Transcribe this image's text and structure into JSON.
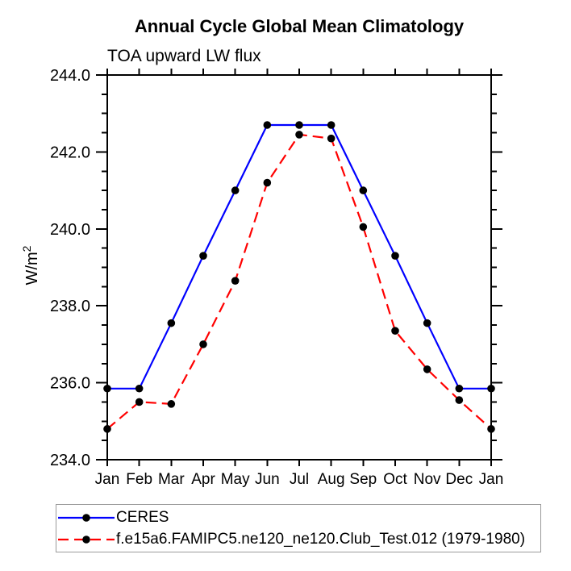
{
  "chart_data": {
    "type": "line",
    "title": "Annual Cycle Global Mean Climatology",
    "subtitle": "TOA upward LW flux",
    "ylabel": "W/m",
    "ylabel_sup": "2",
    "x_categories": [
      "Jan",
      "Feb",
      "Mar",
      "Apr",
      "May",
      "Jun",
      "Jul",
      "Aug",
      "Sep",
      "Oct",
      "Nov",
      "Dec",
      "Jan"
    ],
    "ylim": [
      234.0,
      244.0
    ],
    "ytick_major_interval": 2.0,
    "ytick_minor_interval": 0.5,
    "ytick_labels": [
      "234.0",
      "236.0",
      "238.0",
      "240.0",
      "242.0",
      "244.0"
    ],
    "grid": false,
    "legend_position": "bottom",
    "axis_color": "#000000",
    "marker_color": "#000000",
    "legend_border_color": "#9a9a9a",
    "series": [
      {
        "name": "CERES",
        "color": "#0000ff",
        "style": "solid",
        "marker": "filled-circle",
        "values": [
          235.85,
          235.85,
          237.55,
          239.3,
          241.0,
          242.7,
          242.7,
          242.7,
          241.0,
          239.3,
          237.55,
          235.85,
          235.85
        ]
      },
      {
        "name": "f.e15a6.FAMIPC5.ne120_ne120.Club_Test.012 (1979-1980)",
        "color": "#ff0000",
        "style": "dashed",
        "marker": "filled-circle",
        "values": [
          234.8,
          235.5,
          235.45,
          237.0,
          238.65,
          241.2,
          242.45,
          242.35,
          240.05,
          237.35,
          236.35,
          235.55,
          234.8
        ]
      }
    ]
  }
}
